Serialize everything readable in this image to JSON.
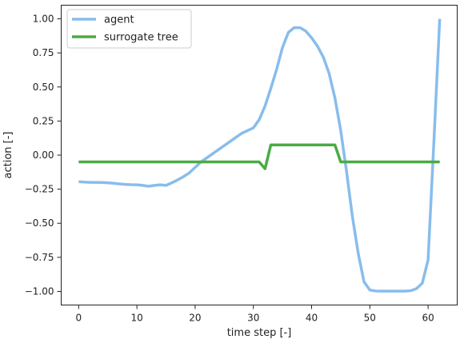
{
  "chart_data": {
    "type": "line",
    "title": "",
    "xlabel": "time step [-]",
    "ylabel": "action [-]",
    "xlim": [
      -3,
      65
    ],
    "ylim": [
      -1.1,
      1.1
    ],
    "xticks": [
      0,
      10,
      20,
      30,
      40,
      50,
      60
    ],
    "yticks": [
      -1.0,
      -0.75,
      -0.5,
      -0.25,
      0.0,
      0.25,
      0.5,
      0.75,
      1.0
    ],
    "ytick_labels": [
      "−1.00",
      "−0.75",
      "−0.50",
      "−0.25",
      "0.00",
      "0.25",
      "0.50",
      "0.75",
      "1.00"
    ],
    "legend_position": "top-left",
    "series": [
      {
        "name": "agent",
        "color": "#88bdec",
        "x": [
          0,
          1,
          2,
          3,
          4,
          5,
          6,
          7,
          8,
          9,
          10,
          11,
          12,
          13,
          14,
          15,
          16,
          17,
          18,
          19,
          20,
          21,
          22,
          23,
          24,
          25,
          26,
          27,
          28,
          29,
          30,
          31,
          32,
          33,
          34,
          35,
          36,
          37,
          38,
          39,
          40,
          41,
          42,
          43,
          44,
          45,
          46,
          47,
          48,
          49,
          50,
          51,
          52,
          53,
          54,
          55,
          56,
          57,
          58,
          59,
          60,
          61,
          62
        ],
        "y": [
          -0.195,
          -0.198,
          -0.2,
          -0.2,
          -0.201,
          -0.203,
          -0.207,
          -0.211,
          -0.215,
          -0.217,
          -0.218,
          -0.222,
          -0.229,
          -0.222,
          -0.218,
          -0.222,
          -0.203,
          -0.182,
          -0.158,
          -0.13,
          -0.09,
          -0.05,
          -0.02,
          0.01,
          0.04,
          0.07,
          0.1,
          0.13,
          0.16,
          0.18,
          0.2,
          0.26,
          0.36,
          0.49,
          0.63,
          0.79,
          0.9,
          0.935,
          0.935,
          0.91,
          0.86,
          0.8,
          0.72,
          0.6,
          0.42,
          0.18,
          -0.12,
          -0.45,
          -0.72,
          -0.93,
          -0.99,
          -0.997,
          -0.998,
          -0.998,
          -0.998,
          -0.998,
          -0.998,
          -0.995,
          -0.98,
          -0.94,
          -0.77,
          0.1,
          1.0
        ]
      },
      {
        "name": "surrogate tree",
        "color": "#4aab45",
        "x": [
          0,
          31,
          32,
          33,
          44,
          45,
          62
        ],
        "y": [
          -0.05,
          -0.05,
          -0.1,
          0.075,
          0.075,
          -0.05,
          -0.05
        ]
      }
    ]
  }
}
